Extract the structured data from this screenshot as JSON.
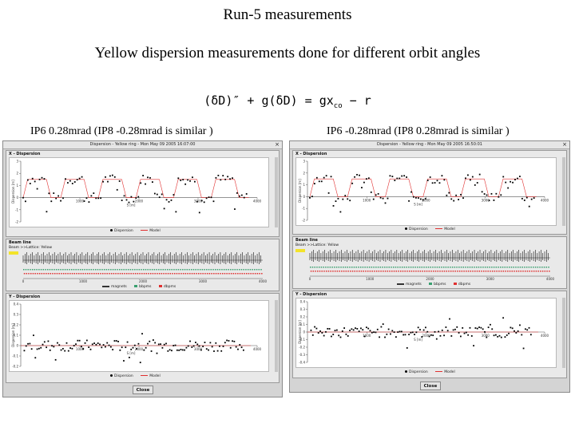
{
  "slide": {
    "title": "Run-5 measurements",
    "subtitle": "Yellow dispersion measurements done for different orbit angles",
    "equation": "(δD)″ + g(δD) = gx",
    "equation_sub": "co",
    "equation_tail": " − r",
    "caption_left": "IP6 0.28mrad  (IP8 -0.28mrad is similar )",
    "caption_right": "IP6 -0.28mrad  (IP8 0.28mrad is similar )"
  },
  "windows": [
    {
      "title": "Dispersion - Yellow ring - Mon May 09 2005 16:07:00",
      "close_glyph": "×",
      "x_panel_title": "X - Dispersion",
      "beam_panel_title": "Beam line",
      "y_panel_title": "Y - Dispersion",
      "x_axis_label": "S [m]",
      "x_ylabel": "Dispersion [m]",
      "y_ylabel": "Dispersion [m]",
      "legend_dispersion": "Dispersion",
      "legend_model": "Model",
      "beam_selector": "Beam >>",
      "beam_lattice": "Lattice: Yellow",
      "beam_legend": [
        "magnets",
        "bbpms",
        "dbpms"
      ],
      "close_label": "Close"
    },
    {
      "title": "Dispersion - Yellow ring - Mon May 09 2005 16:50:01",
      "close_glyph": "×",
      "x_panel_title": "X - Dispersion",
      "beam_panel_title": "Beam line",
      "y_panel_title": "Y - Dispersion",
      "x_axis_label": "S [m]",
      "x_ylabel": "Dispersion [m]",
      "y_ylabel": "Dispersion [m]",
      "legend_dispersion": "Dispersion",
      "legend_model": "Model",
      "beam_selector": "Beam >>",
      "beam_lattice": "Lattice: Yellow",
      "beam_legend": [
        "magnets",
        "bbpms",
        "dbpms"
      ],
      "close_label": "Close"
    }
  ],
  "colors": {
    "model_line": "#e03030",
    "data_points": "#000000",
    "bpm_green": "#3aa070",
    "highlight_yellow": "#f3e32a"
  },
  "chart_data": [
    {
      "type": "scatter",
      "window": 0,
      "panel": "X - Dispersion",
      "xlim": [
        0,
        4000
      ],
      "ylim": [
        -2,
        3
      ],
      "x_ticks": [
        1000,
        2000,
        3000,
        4000
      ],
      "y_ticks": [
        -2,
        -1,
        0,
        1,
        2,
        3
      ],
      "model_plateau_high": 1.5,
      "model_plateau_low": 0.0,
      "arc_count": 6,
      "xlabel": "S [m]",
      "ylabel": "Dispersion [m]"
    },
    {
      "type": "scatter",
      "window": 0,
      "panel": "Y - Dispersion",
      "xlim": [
        0,
        4000
      ],
      "ylim": [
        -0.2,
        0.4
      ],
      "x_ticks": [
        1000,
        2000,
        3000,
        4000
      ],
      "y_ticks": [
        -0.2,
        -0.1,
        0,
        0.1,
        0.2,
        0.3,
        0.4
      ],
      "model_value": 0,
      "xlabel": "S [m]",
      "ylabel": "Dispersion [m]"
    },
    {
      "type": "scatter",
      "window": 1,
      "panel": "X - Dispersion",
      "xlim": [
        0,
        4000
      ],
      "ylim": [
        -2,
        3
      ],
      "x_ticks": [
        1000,
        2000,
        3000,
        4000
      ],
      "y_ticks": [
        -2,
        -1,
        0,
        1,
        2,
        3
      ],
      "model_plateau_high": 1.5,
      "model_plateau_low": 0.0,
      "arc_count": 6,
      "xlabel": "S [m]",
      "ylabel": "Dispersion [m]"
    },
    {
      "type": "scatter",
      "window": 1,
      "panel": "Y - Dispersion",
      "xlim": [
        0,
        4000
      ],
      "ylim": [
        -0.4,
        0.4
      ],
      "x_ticks": [
        1000,
        2000,
        3000,
        4000
      ],
      "y_ticks": [
        -0.4,
        -0.3,
        -0.2,
        -0.1,
        0,
        0.1,
        0.2,
        0.3,
        0.4
      ],
      "model_value": 0,
      "xlabel": "S [m]",
      "ylabel": "Dispersion [m]"
    }
  ]
}
